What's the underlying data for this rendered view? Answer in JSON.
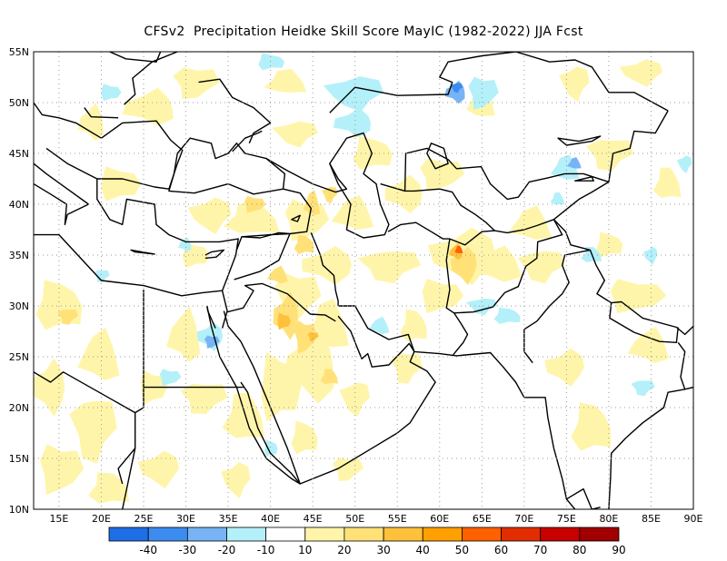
{
  "title": "CFSv2  Precipitation Heidke Skill Score MayIC (1982-2022) JJA Fcst",
  "map": {
    "lon_range": [
      12,
      90
    ],
    "lat_range": [
      10,
      55
    ],
    "lat_labels": [
      "55N",
      "50N",
      "45N",
      "40N",
      "35N",
      "30N",
      "25N",
      "20N",
      "15N",
      "10N"
    ],
    "lon_labels": [
      "15E",
      "20E",
      "25E",
      "30E",
      "35E",
      "40E",
      "45E",
      "50E",
      "55E",
      "60E",
      "65E",
      "70E",
      "75E",
      "80E",
      "85E",
      "90E"
    ],
    "gridlines": "dotted"
  },
  "colorbar": {
    "labels": [
      "-40",
      "-30",
      "-20",
      "-10",
      "10",
      "20",
      "30",
      "40",
      "50",
      "60",
      "70",
      "80",
      "90"
    ],
    "colors": [
      "#1e6ee6",
      "#3c8cf0",
      "#78b4f5",
      "#b4f0fa",
      "#ffffff",
      "#fff5aa",
      "#ffe178",
      "#ffc03c",
      "#ffa000",
      "#ff6000",
      "#e12d00",
      "#c80000",
      "#a00000"
    ]
  },
  "regions": [
    {
      "level": 10,
      "lon": 45,
      "lat": 40
    },
    {
      "level": 20,
      "lon": 42,
      "lat": 29
    },
    {
      "level": 30,
      "lon": 62,
      "lat": 35
    },
    {
      "level": 50,
      "lon": 62,
      "lat": 35.3
    },
    {
      "level": -10,
      "lon": 50,
      "lat": 48
    },
    {
      "level": -20,
      "lon": 62,
      "lat": 51
    },
    {
      "level": -30,
      "lon": 62,
      "lat": 51.5
    }
  ]
}
